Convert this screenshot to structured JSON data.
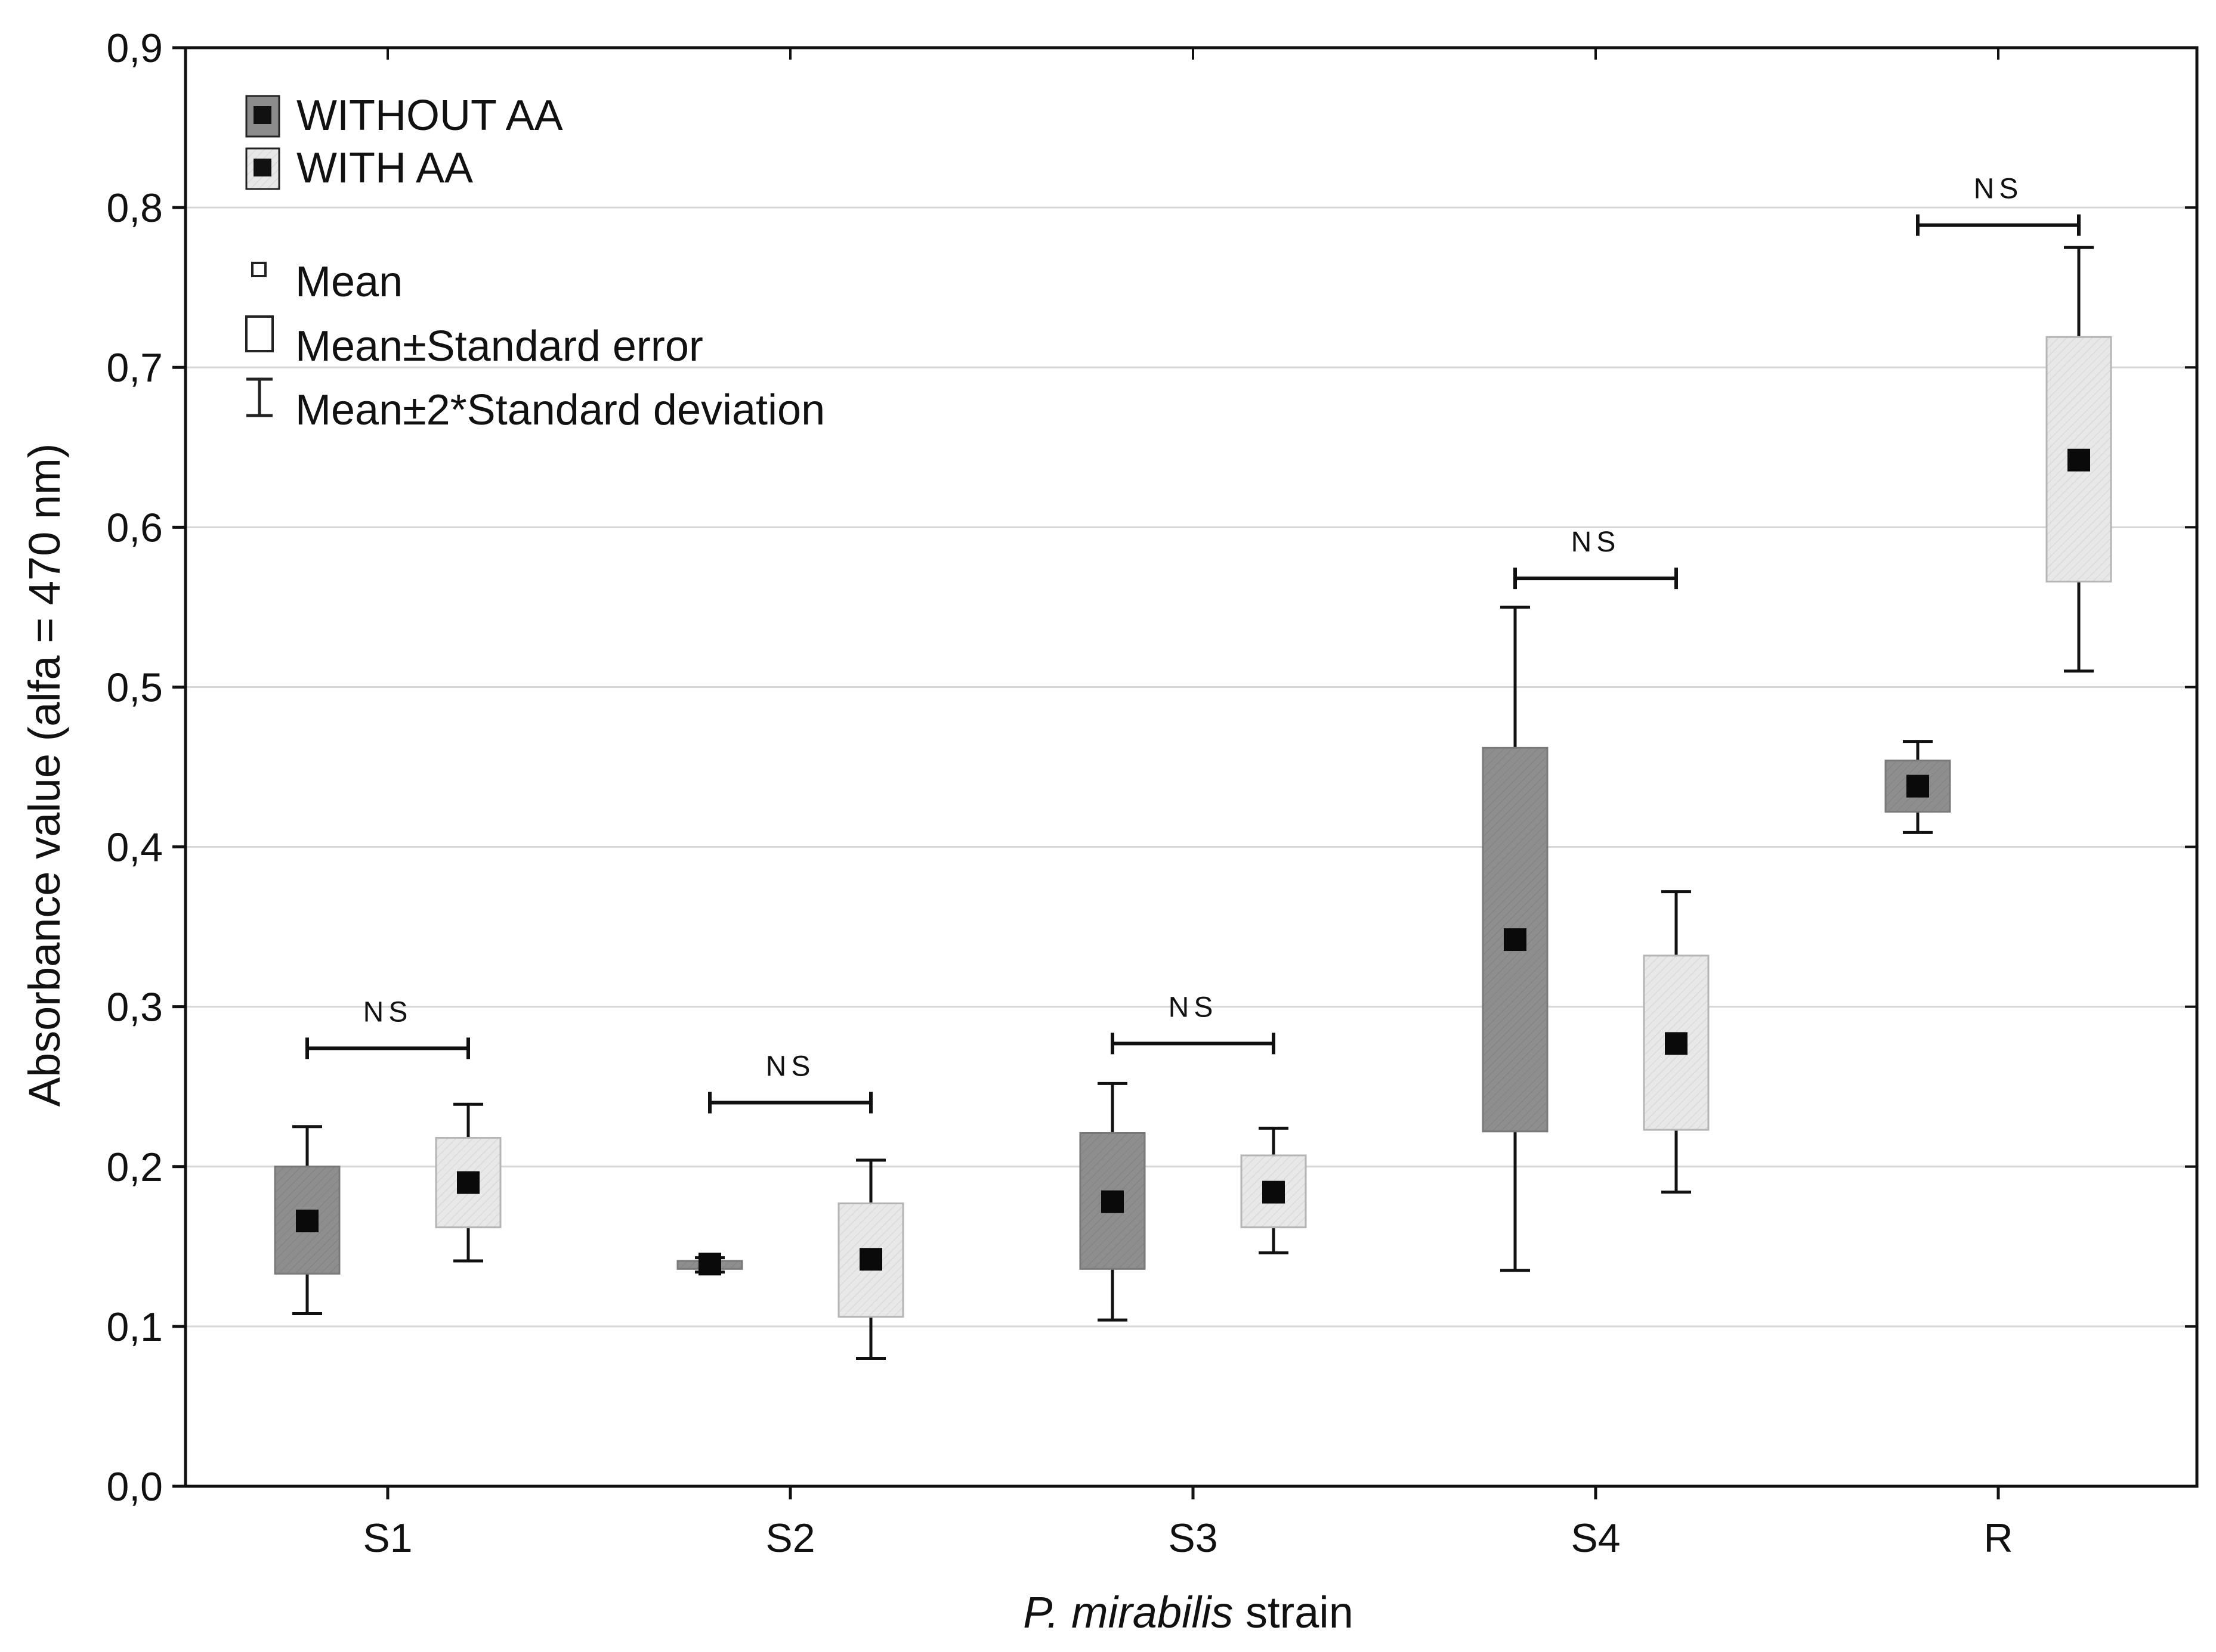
{
  "chart_data": {
    "type": "box",
    "title": "",
    "xlabel": {
      "italic": "P. mirabilis",
      "rest": " strain"
    },
    "ylabel": "Absorbance value (alfa = 470 nm)",
    "ylim": [
      0,
      0.9
    ],
    "yticks": [
      0.0,
      0.1,
      0.2,
      0.3,
      0.4,
      0.5,
      0.6,
      0.7,
      0.8,
      0.9
    ],
    "ytick_labels": [
      "0,0",
      "0,1",
      "0,2",
      "0,3",
      "0,4",
      "0,5",
      "0,6",
      "0,7",
      "0,8",
      "0,9"
    ],
    "grid": true,
    "categories": [
      "S1",
      "S2",
      "S3",
      "S4",
      "R"
    ],
    "series": [
      {
        "name": "WITHOUT AA",
        "color": "#8c8c8c",
        "values": [
          {
            "mean": 0.166,
            "se_low": 0.133,
            "se_high": 0.2,
            "sd2_low": 0.108,
            "sd2_high": 0.225
          },
          {
            "mean": 0.139,
            "se_low": 0.136,
            "se_high": 0.141,
            "sd2_low": 0.134,
            "sd2_high": 0.143
          },
          {
            "mean": 0.178,
            "se_low": 0.136,
            "se_high": 0.221,
            "sd2_low": 0.104,
            "sd2_high": 0.252
          },
          {
            "mean": 0.342,
            "se_low": 0.222,
            "se_high": 0.462,
            "sd2_low": 0.135,
            "sd2_high": 0.55
          },
          {
            "mean": 0.438,
            "se_low": 0.422,
            "se_high": 0.454,
            "sd2_low": 0.409,
            "sd2_high": 0.466
          }
        ]
      },
      {
        "name": "WITH AA",
        "color": "#e6e6e6",
        "values": [
          {
            "mean": 0.19,
            "se_low": 0.162,
            "se_high": 0.218,
            "sd2_low": 0.141,
            "sd2_high": 0.239
          },
          {
            "mean": 0.142,
            "se_low": 0.106,
            "se_high": 0.177,
            "sd2_low": 0.08,
            "sd2_high": 0.204
          },
          {
            "mean": 0.184,
            "se_low": 0.162,
            "se_high": 0.207,
            "sd2_low": 0.146,
            "sd2_high": 0.224
          },
          {
            "mean": 0.277,
            "se_low": 0.223,
            "se_high": 0.332,
            "sd2_low": 0.184,
            "sd2_high": 0.372
          },
          {
            "mean": 0.642,
            "se_low": 0.566,
            "se_high": 0.719,
            "sd2_low": 0.51,
            "sd2_high": 0.775
          }
        ]
      }
    ],
    "annotations": [
      {
        "category": "S1",
        "text": "NS",
        "y": 0.274
      },
      {
        "category": "S2",
        "text": "NS",
        "y": 0.24
      },
      {
        "category": "S3",
        "text": "NS",
        "y": 0.277
      },
      {
        "category": "S4",
        "text": "NS",
        "y": 0.568
      },
      {
        "category": "R",
        "text": "NS",
        "y": 0.789
      }
    ],
    "legend": {
      "placement": "top-left",
      "series_labels": [
        "WITHOUT AA",
        "WITH AA"
      ],
      "stat_labels": [
        "Mean",
        "Mean±Standard error",
        "Mean±2*Standard deviation"
      ]
    }
  }
}
